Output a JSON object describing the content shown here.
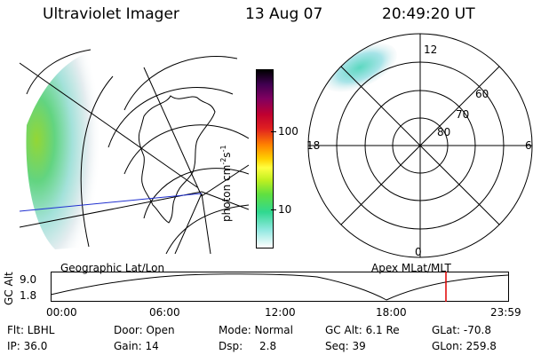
{
  "header": {
    "instrument": "Ultraviolet Imager",
    "date": "13 Aug 07",
    "time": "20:49:20 UT"
  },
  "left_map": {
    "caption": "Geographic Lat/Lon"
  },
  "right_map": {
    "caption": "Apex MLat/MLT",
    "mlt_labels": {
      "top": "12",
      "left": "18",
      "right": "6",
      "bottom": "0"
    },
    "lat_labels": [
      "60",
      "70",
      "80"
    ]
  },
  "colorbar": {
    "unit": "photon cm",
    "exp1": "-2",
    "s": "s",
    "exp2": "-1",
    "ticks": [
      "100",
      "10"
    ]
  },
  "altitude_plot": {
    "label": "GC Alt",
    "y_ticks": [
      "9.0",
      "1.8"
    ],
    "x_ticks": [
      "00:00",
      "06:00",
      "12:00",
      "18:00",
      "23:59"
    ],
    "marker_color": "#e00000"
  },
  "status": {
    "flt": "Flt: LBHL",
    "ip": "IP: 36.0",
    "door": "Door: Open",
    "gain": "Gain: 14",
    "mode": "Mode: Normal",
    "dsp_label": "Dsp:",
    "dsp_value": "2.8",
    "gcalt": "GC Alt: 6.1 Re",
    "seq": "Seq: 39",
    "glat": "GLat: -70.8",
    "glon": "GLon: 259.8"
  }
}
